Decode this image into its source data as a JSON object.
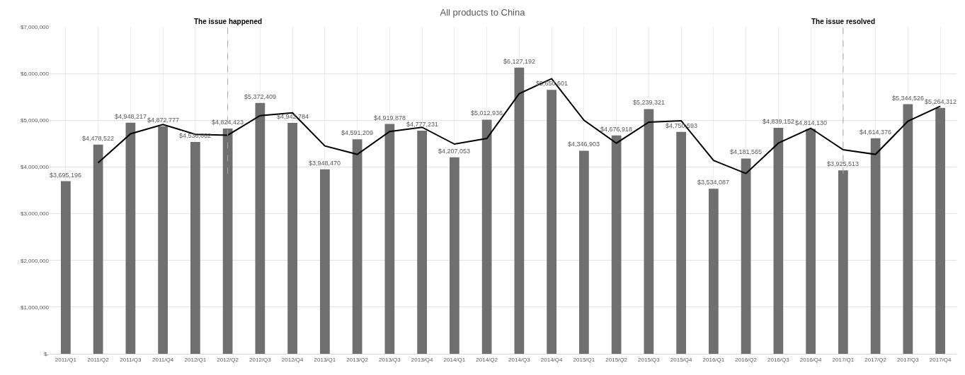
{
  "chart_data": {
    "type": "bar",
    "title": "All products to China",
    "categories": [
      "2011/Q1",
      "2011/Q2",
      "2011/Q3",
      "2011/Q4",
      "2012/Q1",
      "2012/Q2",
      "2012/Q3",
      "2012/Q4",
      "2013/Q1",
      "2013/Q2",
      "2013/Q3",
      "2013/Q4",
      "2014/Q1",
      "2014/Q2",
      "2014/Q3",
      "2014/Q4",
      "2015/Q1",
      "2015/Q2",
      "2015/Q3",
      "2015/Q4",
      "2016/Q1",
      "2016/Q2",
      "2016/Q3",
      "2016/Q4",
      "2017/Q1",
      "2017/Q2",
      "2017/Q3",
      "2017/Q4"
    ],
    "series": [
      {
        "color": "#6f6f6f",
        "values": [
          3695196,
          4478522,
          4948217,
          4872777,
          4536862,
          4824423,
          5372409,
          4942784,
          3948470,
          4591209,
          4919878,
          4777231,
          4207053,
          5012936,
          6127192,
          5650601,
          4346903,
          4676918,
          5239321,
          4750593,
          3534087,
          4181565,
          4839152,
          4814130,
          3925513,
          4614376,
          5344526,
          5264312
        ],
        "value_labels": [
          "$3,695,196",
          "$4,478,522",
          "$4,948,217",
          "$4,872,777",
          "$4,536,862",
          "$4,824,423",
          "$5,372,409",
          "$4,942,784",
          "$3,948,470",
          "$4,591,209",
          "$4,919,878",
          "$4,777,231",
          "$4,207,053",
          "$5,012,936",
          "$6,127,192",
          "$5,650,601",
          "$4,346,903",
          "$4,676,918",
          "$5,239,321",
          "$4,750,593",
          "$3,534,087",
          "$4,181,565",
          "$4,839,152",
          "$4,814,130",
          "$3,925,513",
          "$4,614,376",
          "$5,344,526",
          "$5,264,312"
        ]
      },
      {
        "type": "line",
        "color": "#000000",
        "values": [
          null,
          4090000,
          4710000,
          4910000,
          4700000,
          4680000,
          5100000,
          5160000,
          4450000,
          4270000,
          4760000,
          4850000,
          4490000,
          4610000,
          5570000,
          5890000,
          5000000,
          4510000,
          4960000,
          4990000,
          4140000,
          3860000,
          4510000,
          4830000,
          4370000,
          4270000,
          4980000,
          5300000
        ]
      }
    ],
    "ylim": [
      0,
      7000000
    ],
    "yticks": [
      {
        "value": 0,
        "label": "$-"
      },
      {
        "value": 1000000,
        "label": "$1,000,000"
      },
      {
        "value": 2000000,
        "label": "$2,000,000"
      },
      {
        "value": 3000000,
        "label": "$3,000,000"
      },
      {
        "value": 4000000,
        "label": "$4,000,000"
      },
      {
        "value": 5000000,
        "label": "$5,000,000"
      },
      {
        "value": 6000000,
        "label": "$6,000,000"
      },
      {
        "value": 7000000,
        "label": "$7,000,000"
      }
    ],
    "ref_lines": [
      {
        "axis": "x",
        "value": "2012/Q2",
        "label": "The issue happened",
        "color": "#a6a6a6",
        "line_style": "dashed"
      },
      {
        "axis": "x",
        "value": "2017/Q1",
        "label": "The issue resolved",
        "color": "#a6a6a6",
        "line_style": "dashed"
      }
    ],
    "grid": true
  }
}
